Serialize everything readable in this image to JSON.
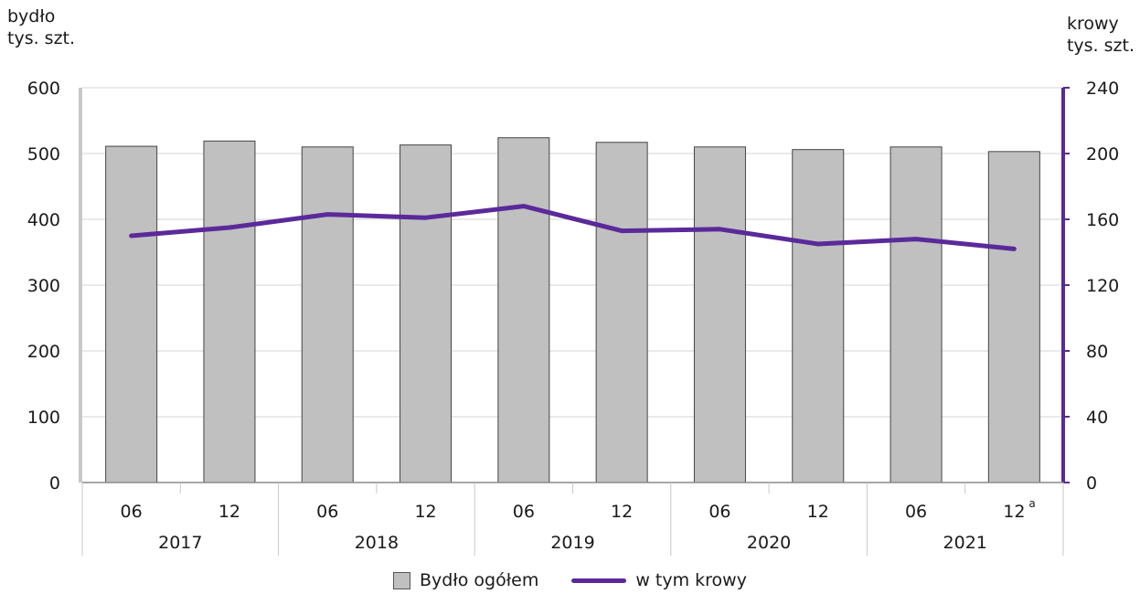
{
  "chart_data": {
    "type": "bar",
    "left_axis": {
      "title": "bydło\ntys. szt.",
      "ylim": [
        0,
        600
      ],
      "ticks": [
        0,
        100,
        200,
        300,
        400,
        500,
        600
      ]
    },
    "right_axis": {
      "title": "krowy\ntys. szt.",
      "ylim": [
        0,
        240
      ],
      "ticks": [
        0,
        40,
        80,
        120,
        160,
        200,
        240
      ]
    },
    "categories": [
      "06",
      "12",
      "06",
      "12",
      "06",
      "12",
      "06",
      "12",
      "06",
      "12"
    ],
    "superscripts": [
      "",
      "",
      "",
      "",
      "",
      "",
      "",
      "",
      "",
      "a"
    ],
    "years": [
      "2017",
      "2018",
      "2019",
      "2020",
      "2021"
    ],
    "series": [
      {
        "name": "Bydło ogółem",
        "type": "bar",
        "axis": "left",
        "color": "#c0c0c0",
        "values": [
          511,
          519,
          510,
          513,
          524,
          517,
          510,
          506,
          510,
          503
        ]
      },
      {
        "name": "w tym krowy",
        "type": "line",
        "axis": "right",
        "color": "#5a2a9a",
        "values": [
          150,
          155,
          163,
          161,
          168,
          153,
          154,
          145,
          148,
          142
        ]
      }
    ],
    "grid": true,
    "legend_position": "bottom"
  }
}
